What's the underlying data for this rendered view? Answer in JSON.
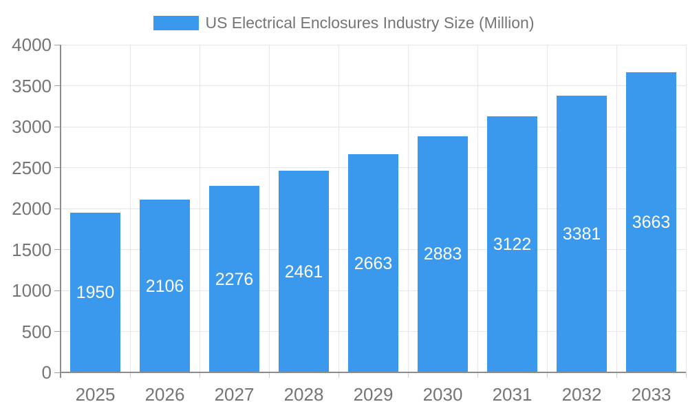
{
  "chart_data": {
    "type": "bar",
    "title": "US Electrical Enclosures Industry Size (Million)",
    "categories": [
      "2025",
      "2026",
      "2027",
      "2028",
      "2029",
      "2030",
      "2031",
      "2032",
      "2033"
    ],
    "values": [
      1950,
      2106,
      2276,
      2461,
      2663,
      2883,
      3122,
      3381,
      3663
    ],
    "xlabel": "",
    "ylabel": "",
    "ylim": [
      0,
      4000
    ],
    "ytick_step": 500,
    "yticks": [
      0,
      500,
      1000,
      1500,
      2000,
      2500,
      3000,
      3500,
      4000
    ],
    "grid": true,
    "legend_position": "top",
    "bar_labels_inside": true,
    "colors": {
      "bar": "#3a99ec",
      "grid": "#e6e6e6",
      "axis": "#8c8c8c",
      "axis_tick": "#9e9e9e",
      "category_tick": "#cccccc",
      "label_text": "#757575",
      "bar_label": "#ffffff",
      "background": "#ffffff"
    }
  }
}
